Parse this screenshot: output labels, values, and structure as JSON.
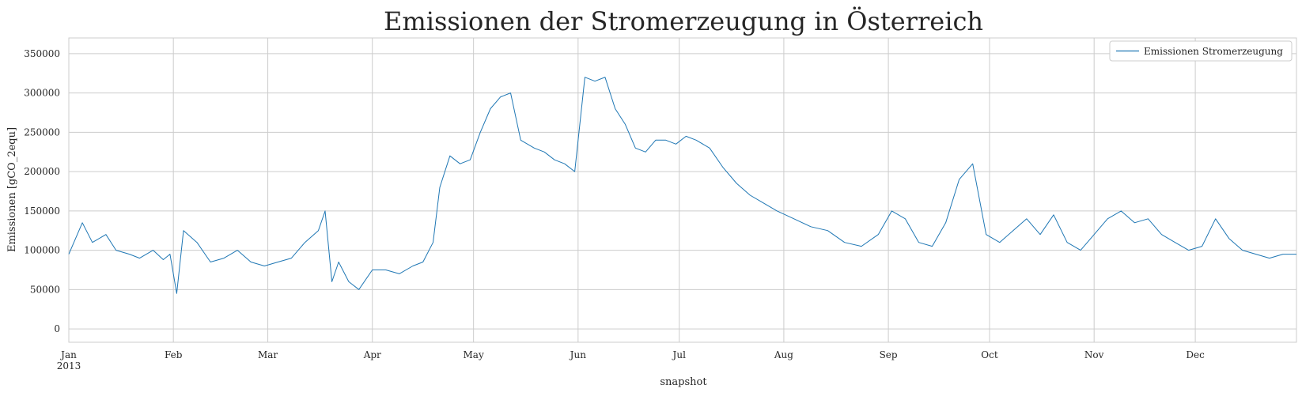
{
  "chart_data": {
    "type": "line",
    "title": "Emissionen der Stromerzeugung in Österreich",
    "xlabel": "snapshot",
    "ylabel": "Emissionen [gCO_2equ]",
    "xlim": [
      "2013-01-01",
      "2013-12-31"
    ],
    "ylim": [
      -17000,
      370000
    ],
    "yticks": [
      0,
      50000,
      100000,
      150000,
      200000,
      250000,
      300000,
      350000
    ],
    "ytick_labels": [
      "0",
      "50000",
      "100000",
      "150000",
      "200000",
      "250000",
      "300000",
      "350000"
    ],
    "xticks": [
      "2013-01-01",
      "2013-02-01",
      "2013-03-01",
      "2013-04-01",
      "2013-05-01",
      "2013-06-01",
      "2013-07-01",
      "2013-08-01",
      "2013-09-01",
      "2013-10-01",
      "2013-11-01",
      "2013-12-01"
    ],
    "xtick_labels": [
      "Jan",
      "Feb",
      "Mar",
      "Apr",
      "May",
      "Jun",
      "Jul",
      "Aug",
      "Sep",
      "Oct",
      "Nov",
      "Dec"
    ],
    "xtick_sublabel": "2013",
    "grid": true,
    "legend_position": "top-right",
    "color": "#1f77b4",
    "series": [
      {
        "name": "Emissionen Stromerzeugung",
        "x": [
          "2013-01-01",
          "2013-01-05",
          "2013-01-08",
          "2013-01-12",
          "2013-01-15",
          "2013-01-19",
          "2013-01-22",
          "2013-01-26",
          "2013-01-29",
          "2013-01-31",
          "2013-02-02",
          "2013-02-04",
          "2013-02-08",
          "2013-02-12",
          "2013-02-16",
          "2013-02-20",
          "2013-02-24",
          "2013-02-28",
          "2013-03-04",
          "2013-03-08",
          "2013-03-12",
          "2013-03-16",
          "2013-03-18",
          "2013-03-20",
          "2013-03-22",
          "2013-03-25",
          "2013-03-28",
          "2013-04-01",
          "2013-04-05",
          "2013-04-09",
          "2013-04-13",
          "2013-04-16",
          "2013-04-19",
          "2013-04-21",
          "2013-04-24",
          "2013-04-27",
          "2013-04-30",
          "2013-05-03",
          "2013-05-06",
          "2013-05-09",
          "2013-05-12",
          "2013-05-15",
          "2013-05-19",
          "2013-05-22",
          "2013-05-25",
          "2013-05-28",
          "2013-05-31",
          "2013-06-03",
          "2013-06-06",
          "2013-06-09",
          "2013-06-12",
          "2013-06-15",
          "2013-06-18",
          "2013-06-21",
          "2013-06-24",
          "2013-06-27",
          "2013-06-30",
          "2013-07-03",
          "2013-07-06",
          "2013-07-10",
          "2013-07-14",
          "2013-07-18",
          "2013-07-22",
          "2013-07-26",
          "2013-07-30",
          "2013-08-04",
          "2013-08-09",
          "2013-08-14",
          "2013-08-19",
          "2013-08-24",
          "2013-08-29",
          "2013-09-02",
          "2013-09-06",
          "2013-09-10",
          "2013-09-14",
          "2013-09-18",
          "2013-09-22",
          "2013-09-26",
          "2013-09-30",
          "2013-10-04",
          "2013-10-08",
          "2013-10-12",
          "2013-10-16",
          "2013-10-20",
          "2013-10-24",
          "2013-10-28",
          "2013-11-01",
          "2013-11-05",
          "2013-11-09",
          "2013-11-13",
          "2013-11-17",
          "2013-11-21",
          "2013-11-25",
          "2013-11-29",
          "2013-12-03",
          "2013-12-07",
          "2013-12-11",
          "2013-12-15",
          "2013-12-19",
          "2013-12-23",
          "2013-12-27",
          "2013-12-31"
        ],
        "y": [
          95000,
          135000,
          110000,
          120000,
          100000,
          95000,
          90000,
          100000,
          88000,
          95000,
          45000,
          125000,
          110000,
          85000,
          90000,
          100000,
          85000,
          80000,
          85000,
          90000,
          110000,
          125000,
          150000,
          60000,
          85000,
          60000,
          50000,
          75000,
          75000,
          70000,
          80000,
          85000,
          110000,
          180000,
          220000,
          210000,
          215000,
          250000,
          280000,
          295000,
          300000,
          240000,
          230000,
          225000,
          215000,
          210000,
          200000,
          320000,
          315000,
          320000,
          280000,
          260000,
          230000,
          225000,
          240000,
          240000,
          235000,
          245000,
          240000,
          230000,
          205000,
          185000,
          170000,
          160000,
          150000,
          140000,
          130000,
          125000,
          110000,
          105000,
          120000,
          150000,
          140000,
          110000,
          105000,
          135000,
          190000,
          210000,
          120000,
          110000,
          125000,
          140000,
          120000,
          145000,
          110000,
          100000,
          120000,
          140000,
          150000,
          135000,
          140000,
          120000,
          110000,
          100000,
          105000,
          140000,
          115000,
          100000,
          95000,
          90000,
          95000,
          95000
        ]
      }
    ]
  }
}
